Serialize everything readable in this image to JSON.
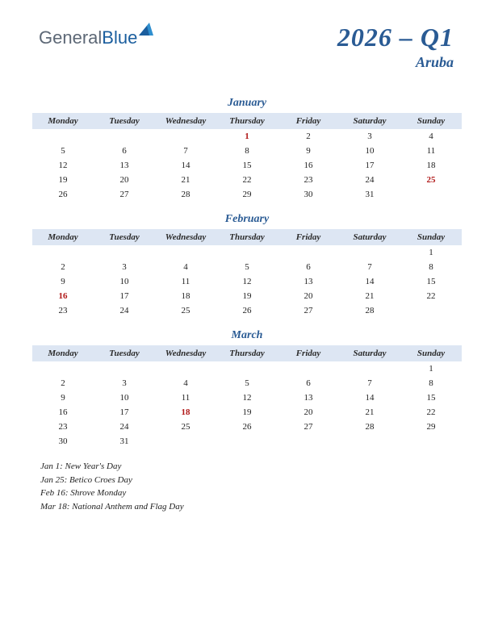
{
  "logo": {
    "part1": "General",
    "part2": "Blue"
  },
  "title": "2026 – Q1",
  "country": "Aruba",
  "colors": {
    "header_bg": "#dde6f3",
    "accent": "#2a5b94",
    "holiday": "#b01818",
    "logo_gray": "#5d6876",
    "logo_blue": "#1b5e9e",
    "triangle": "#2f8fcf"
  },
  "weekdays": [
    "Monday",
    "Tuesday",
    "Wednesday",
    "Thursday",
    "Friday",
    "Saturday",
    "Sunday"
  ],
  "months": [
    {
      "name": "January",
      "weeks": [
        [
          "",
          "",
          "",
          "1",
          "2",
          "3",
          "4"
        ],
        [
          "5",
          "6",
          "7",
          "8",
          "9",
          "10",
          "11"
        ],
        [
          "12",
          "13",
          "14",
          "15",
          "16",
          "17",
          "18"
        ],
        [
          "19",
          "20",
          "21",
          "22",
          "23",
          "24",
          "25"
        ],
        [
          "26",
          "27",
          "28",
          "29",
          "30",
          "31",
          ""
        ]
      ],
      "holidays": [
        "1",
        "25"
      ]
    },
    {
      "name": "February",
      "weeks": [
        [
          "",
          "",
          "",
          "",
          "",
          "",
          "1"
        ],
        [
          "2",
          "3",
          "4",
          "5",
          "6",
          "7",
          "8"
        ],
        [
          "9",
          "10",
          "11",
          "12",
          "13",
          "14",
          "15"
        ],
        [
          "16",
          "17",
          "18",
          "19",
          "20",
          "21",
          "22"
        ],
        [
          "23",
          "24",
          "25",
          "26",
          "27",
          "28",
          ""
        ]
      ],
      "holidays": [
        "16"
      ]
    },
    {
      "name": "March",
      "weeks": [
        [
          "",
          "",
          "",
          "",
          "",
          "",
          "1"
        ],
        [
          "2",
          "3",
          "4",
          "5",
          "6",
          "7",
          "8"
        ],
        [
          "9",
          "10",
          "11",
          "12",
          "13",
          "14",
          "15"
        ],
        [
          "16",
          "17",
          "18",
          "19",
          "20",
          "21",
          "22"
        ],
        [
          "23",
          "24",
          "25",
          "26",
          "27",
          "28",
          "29"
        ],
        [
          "30",
          "31",
          "",
          "",
          "",
          "",
          ""
        ]
      ],
      "holidays": [
        "18"
      ]
    }
  ],
  "holiday_list": [
    "Jan 1: New Year's Day",
    "Jan 25: Betico Croes Day",
    "Feb 16: Shrove Monday",
    "Mar 18: National Anthem and Flag Day"
  ]
}
